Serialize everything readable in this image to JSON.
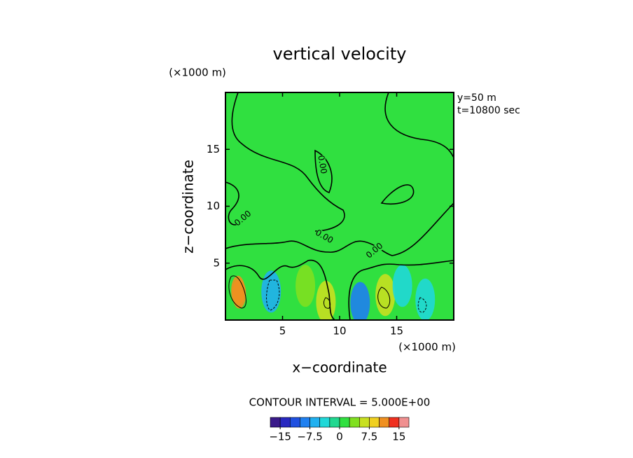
{
  "chart_data": {
    "type": "contour",
    "title": "vertical velocity",
    "x_label": "x−coordinate",
    "y_label": "z−coordinate",
    "x_unit": "(×1000 m)",
    "y_unit": "(×1000 m)",
    "annotations": [
      "y=50 m",
      "t=10800 sec"
    ],
    "contour_interval_text": "CONTOUR INTERVAL = 5.000E+00",
    "contour_labels": [
      {
        "value": 0,
        "label": "0.00"
      },
      {
        "value": 0,
        "label": "0.00"
      },
      {
        "value": 0,
        "label": "0.00"
      },
      {
        "value": 0,
        "label": "0.00"
      }
    ],
    "xlim": [
      0,
      20
    ],
    "ylim": [
      0,
      20
    ],
    "xticks": [
      5,
      10,
      15
    ],
    "yticks": [
      5,
      10,
      15
    ],
    "background_value": 0,
    "features": [
      {
        "x": 1.1,
        "y": 2.6,
        "value": 10
      },
      {
        "x": 1.2,
        "y": 2.3,
        "value": 12
      },
      {
        "x": 4.0,
        "y": 2.5,
        "value": -6
      },
      {
        "x": 7.0,
        "y": 3.0,
        "value": 3
      },
      {
        "x": 8.8,
        "y": 1.6,
        "value": 6
      },
      {
        "x": 11.8,
        "y": 1.5,
        "value": -8
      },
      {
        "x": 14.0,
        "y": 2.2,
        "value": 7
      },
      {
        "x": 15.5,
        "y": 3.0,
        "value": -3
      },
      {
        "x": 17.5,
        "y": 1.8,
        "value": -5
      }
    ],
    "colorbar_lim": [
      -17.5,
      17.5
    ],
    "colorbar_colors": [
      "#3a1a8a",
      "#2828c0",
      "#1f50e0",
      "#1f80f0",
      "#20b0f0",
      "#20d8d8",
      "#20d890",
      "#30e040",
      "#80e020",
      "#c8e020",
      "#f0d020",
      "#f09020",
      "#f03020",
      "#f09090"
    ],
    "colorbar_ticks": [
      {
        "value": -15,
        "label": "−15"
      },
      {
        "value": -7.5,
        "label": "−7.5"
      },
      0,
      7.5,
      15
    ]
  }
}
